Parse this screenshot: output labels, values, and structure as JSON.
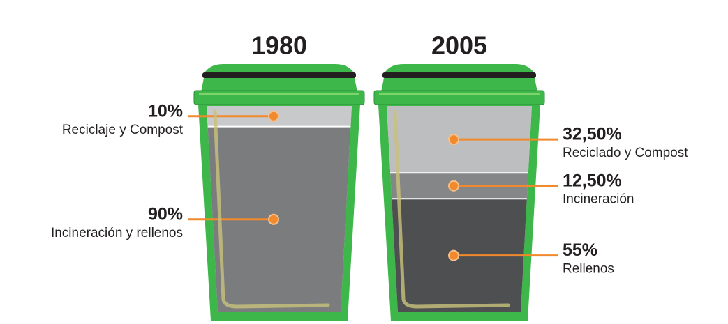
{
  "chart_data": [
    {
      "type": "bin",
      "title": "1980",
      "categories": [
        "Reciclaje y Compost",
        "Incineración y rellenos"
      ],
      "values": [
        10,
        90
      ],
      "value_labels": [
        "10%",
        "90%"
      ],
      "colors": [
        "#c8c9cb",
        "#7b7c7e"
      ]
    },
    {
      "type": "bin",
      "title": "2005",
      "categories": [
        "Reciclado y Compost",
        "Incineración",
        "Rellenos"
      ],
      "values": [
        32.5,
        12.5,
        55
      ],
      "value_labels": [
        "32,50%",
        "12,50%",
        "55%"
      ],
      "colors": [
        "#bdbec0",
        "#858688",
        "#4e4f51"
      ]
    }
  ]
}
